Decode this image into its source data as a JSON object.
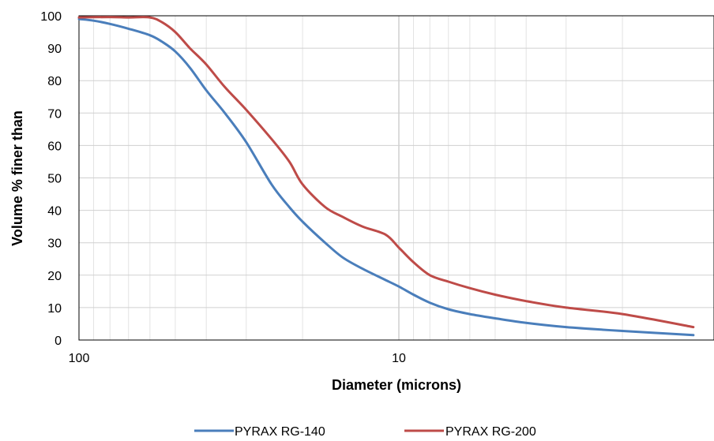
{
  "chart_data": {
    "type": "line",
    "xlabel": "Diameter (microns)",
    "ylabel": "Volume % finer than",
    "x_scale": "log",
    "x_reversed": true,
    "xlim": [
      100,
      1.2
    ],
    "ylim": [
      0,
      100
    ],
    "x_ticks": [
      100,
      10
    ],
    "y_ticks": [
      0,
      10,
      20,
      30,
      40,
      50,
      60,
      70,
      80,
      90,
      100
    ],
    "grid": true,
    "legend_position": "bottom",
    "series": [
      {
        "name": "PYRAX RG-140",
        "color": "#4a7ebb",
        "x": [
          100,
          90,
          80,
          70,
          60,
          55,
          50,
          45,
          40,
          35,
          30,
          25,
          22,
          20,
          17,
          15,
          13,
          11,
          10,
          9,
          8,
          7,
          6,
          5,
          4,
          3,
          2,
          1.2
        ],
        "y": [
          99,
          98.5,
          97.5,
          96,
          94,
          92,
          89,
          84,
          77,
          70,
          61,
          48,
          41,
          36.5,
          30,
          25.5,
          22,
          18.5,
          16.5,
          14,
          11.5,
          9.5,
          8,
          6.7,
          5.3,
          4,
          2.8,
          1.5
        ]
      },
      {
        "name": "PYRAX RG-200",
        "color": "#be4b48",
        "x": [
          100,
          80,
          70,
          60,
          55,
          50,
          45,
          40,
          35,
          30,
          25,
          22,
          20,
          17,
          15,
          13,
          11,
          10,
          9,
          8,
          7,
          6,
          5,
          4,
          3,
          2,
          1.2
        ],
        "y": [
          99.5,
          99.6,
          99.5,
          99.5,
          98,
          95,
          90,
          85,
          78,
          71,
          62,
          55,
          48,
          41,
          38,
          35,
          32.5,
          28.5,
          24,
          20,
          18,
          16,
          14,
          12,
          10,
          8,
          4
        ]
      }
    ]
  }
}
